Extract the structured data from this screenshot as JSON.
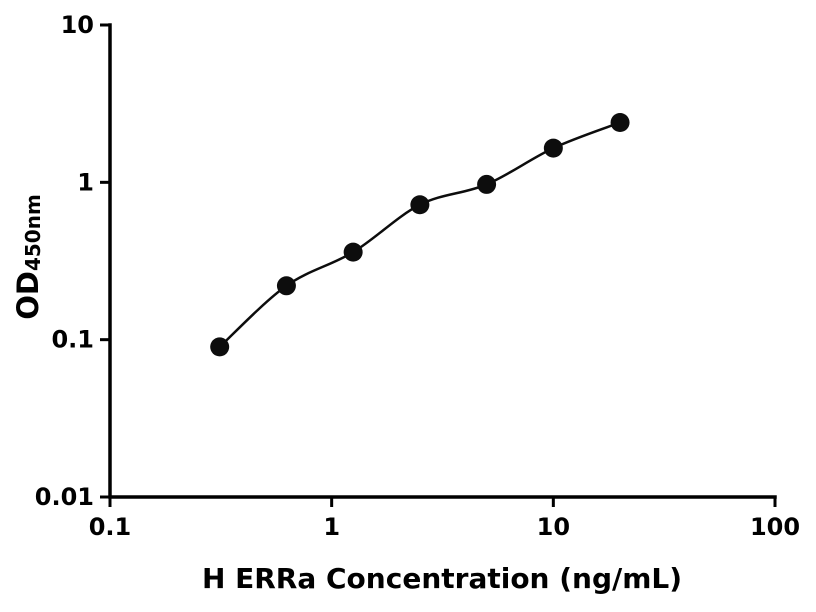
{
  "chart": {
    "xlabel": "H ERRa Concentration (ng/mL)",
    "ylabel_main": "OD",
    "ylabel_sub": "450nm"
  },
  "chart_data": {
    "type": "scatter",
    "subtype": "standard-curve-with-fit-line",
    "title": "",
    "xlabel": "H ERRa Concentration (ng/mL)",
    "ylabel": "OD450nm",
    "x": [
      0.3125,
      0.625,
      1.25,
      2.5,
      5,
      10,
      20
    ],
    "y": [
      0.09,
      0.22,
      0.36,
      0.72,
      0.97,
      1.65,
      2.4
    ],
    "xscale": "log",
    "yscale": "log",
    "xlim": [
      0.1,
      100
    ],
    "ylim": [
      0.01,
      10
    ],
    "xticks": [
      0.1,
      1,
      10,
      100
    ],
    "xtick_labels": [
      "0.1",
      "1",
      "10",
      "100"
    ],
    "yticks": [
      0.01,
      0.1,
      1,
      10
    ],
    "ytick_labels": [
      "0.01",
      "0.1",
      "1",
      "10"
    ],
    "grid": false,
    "legend": false,
    "marker_color": "#0d0d0d",
    "line_color": "#0d0d0d",
    "axis_color": "#000000",
    "background_color": "#ffffff"
  }
}
